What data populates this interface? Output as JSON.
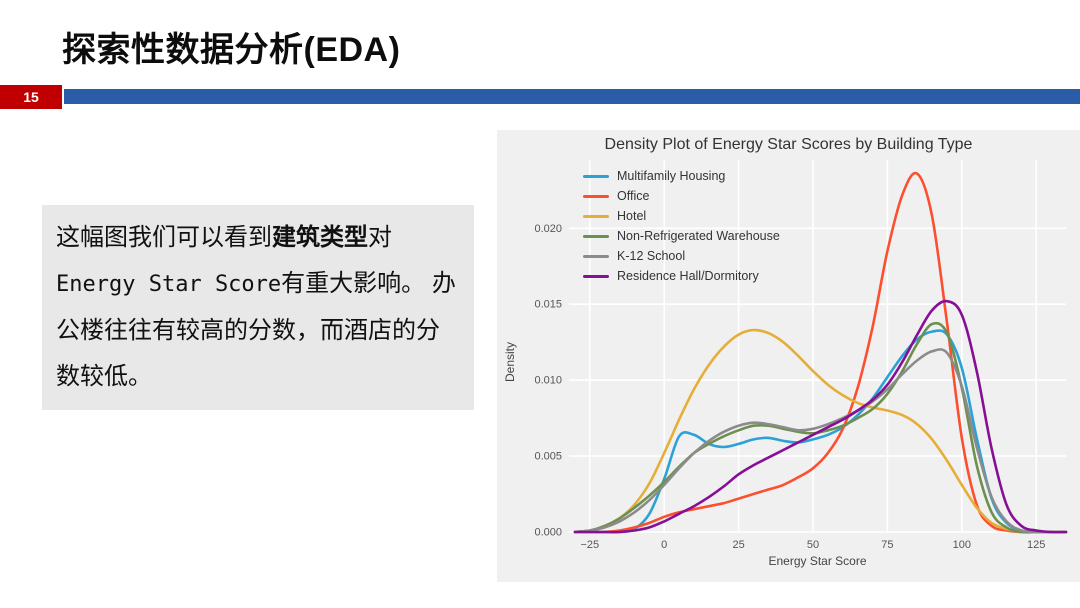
{
  "slide": {
    "title": "探索性数据分析(EDA)",
    "page_number": "15"
  },
  "info_box": {
    "segments": [
      {
        "text": "这幅图我们可以看到",
        "style": "normal"
      },
      {
        "text": "建筑类型",
        "style": "bold"
      },
      {
        "text": "对",
        "style": "normal"
      },
      {
        "text": "Energy Star Score",
        "style": "mono"
      },
      {
        "text": "有重大影响。 办公楼往往有较高的分数，而酒店的分数较低。",
        "style": "normal"
      }
    ]
  },
  "colors": {
    "badge_red": "#c00000",
    "header_blue": "#2a5ca8",
    "figure_background": "#f0f0f0",
    "info_box_background": "#e8e8e8"
  },
  "chart_data": {
    "type": "line",
    "subtype": "kde-density",
    "title": "Density Plot of Energy Star Scores by Building Type",
    "xlabel": "Energy Star Score",
    "ylabel": "Density",
    "xlim": [
      -32,
      135
    ],
    "ylim": [
      0,
      0.0245
    ],
    "xticks": [
      -25,
      0,
      25,
      50,
      75,
      100,
      125
    ],
    "yticks": [
      0.0,
      0.005,
      0.01,
      0.015,
      0.02
    ],
    "grid": true,
    "legend_position": "upper left",
    "x": [
      -30,
      -25,
      -20,
      -15,
      -10,
      -5,
      0,
      5,
      10,
      15,
      20,
      25,
      30,
      35,
      40,
      45,
      50,
      55,
      60,
      65,
      70,
      75,
      80,
      85,
      90,
      95,
      100,
      105,
      110,
      115,
      120,
      125,
      130,
      135
    ],
    "series": [
      {
        "name": "Multifamily Housing",
        "color": "#2aa2d8",
        "values": [
          0,
          0,
          0,
          0,
          0.0002,
          0.0012,
          0.0035,
          0.0063,
          0.0064,
          0.0058,
          0.0056,
          0.0058,
          0.0061,
          0.0062,
          0.006,
          0.0059,
          0.0061,
          0.0064,
          0.0069,
          0.0077,
          0.0088,
          0.0102,
          0.0116,
          0.0127,
          0.0132,
          0.013,
          0.0108,
          0.0062,
          0.0022,
          0.0006,
          0.0001,
          0,
          0,
          0
        ]
      },
      {
        "name": "Office",
        "color": "#fc4f30",
        "values": [
          0,
          0,
          0,
          0.0001,
          0.0003,
          0.0006,
          0.001,
          0.0013,
          0.0015,
          0.0017,
          0.0019,
          0.0022,
          0.0025,
          0.0028,
          0.0031,
          0.0036,
          0.0042,
          0.0052,
          0.0068,
          0.0095,
          0.0135,
          0.0185,
          0.0222,
          0.0236,
          0.0208,
          0.0138,
          0.0062,
          0.0018,
          0.0004,
          0.0001,
          0,
          0,
          0,
          0
        ]
      },
      {
        "name": "Hotel",
        "color": "#e5ae38",
        "values": [
          0,
          0.0001,
          0.0004,
          0.0009,
          0.0018,
          0.0032,
          0.0052,
          0.0074,
          0.0094,
          0.011,
          0.0122,
          0.013,
          0.0133,
          0.0131,
          0.0125,
          0.0116,
          0.0106,
          0.0097,
          0.009,
          0.0085,
          0.0082,
          0.008,
          0.0077,
          0.0071,
          0.0061,
          0.0047,
          0.0031,
          0.0016,
          0.0006,
          0.0002,
          0,
          0,
          0,
          0
        ]
      },
      {
        "name": "Non-Refrigerated Warehouse",
        "color": "#6d904f",
        "values": [
          0,
          0.0001,
          0.0004,
          0.0009,
          0.0016,
          0.0024,
          0.0033,
          0.0043,
          0.0052,
          0.0058,
          0.0063,
          0.0067,
          0.007,
          0.007,
          0.0068,
          0.0066,
          0.0065,
          0.0067,
          0.007,
          0.0075,
          0.0081,
          0.0091,
          0.0106,
          0.0124,
          0.0137,
          0.0131,
          0.0095,
          0.0044,
          0.0013,
          0.0003,
          0,
          0,
          0,
          0
        ]
      },
      {
        "name": "K-12 School",
        "color": "#8b8b8b",
        "values": [
          0,
          0.0001,
          0.0003,
          0.0007,
          0.0013,
          0.0021,
          0.0031,
          0.0042,
          0.0052,
          0.006,
          0.0066,
          0.007,
          0.0072,
          0.0071,
          0.0069,
          0.0067,
          0.0068,
          0.0071,
          0.0075,
          0.008,
          0.0086,
          0.0094,
          0.0104,
          0.0113,
          0.0119,
          0.0118,
          0.0096,
          0.0056,
          0.0023,
          0.0007,
          0.0001,
          0,
          0,
          0
        ]
      },
      {
        "name": "Residence Hall/Dormitory",
        "color": "#860f96",
        "values": [
          0,
          0,
          0,
          0,
          0.0001,
          0.0003,
          0.0007,
          0.0012,
          0.0017,
          0.0023,
          0.003,
          0.0038,
          0.0044,
          0.0049,
          0.0054,
          0.0059,
          0.0064,
          0.0069,
          0.0074,
          0.008,
          0.0087,
          0.0097,
          0.0112,
          0.013,
          0.0146,
          0.0152,
          0.0143,
          0.0106,
          0.0055,
          0.0018,
          0.0004,
          0.0001,
          0,
          0
        ]
      }
    ]
  }
}
